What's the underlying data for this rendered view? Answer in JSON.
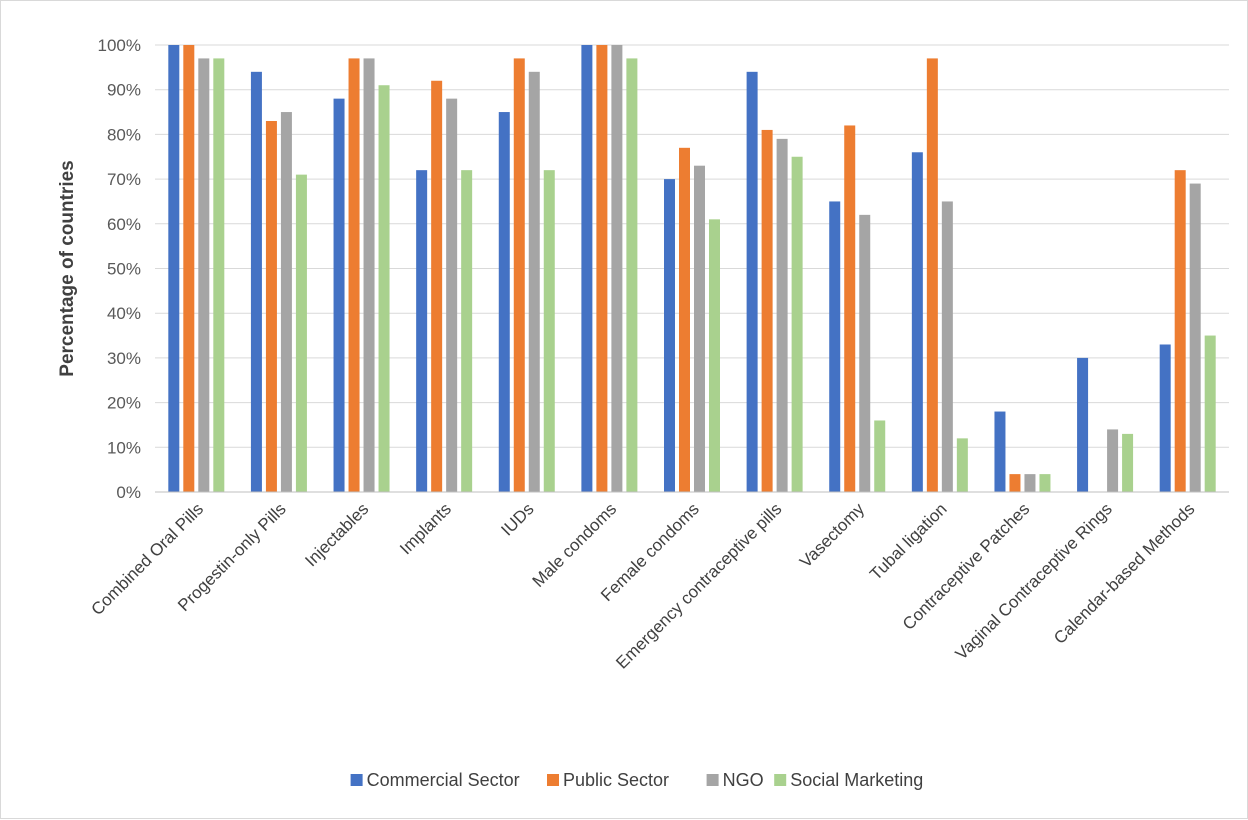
{
  "chart_data": {
    "type": "bar",
    "title": "",
    "xlabel": "",
    "ylabel": "Percentage of countries",
    "ylim": [
      0,
      100
    ],
    "yticks": [
      "0%",
      "10%",
      "20%",
      "30%",
      "40%",
      "50%",
      "60%",
      "70%",
      "80%",
      "90%",
      "100%"
    ],
    "grid": true,
    "legend_position": "bottom",
    "categories": [
      "Combined Oral Pills",
      "Progestin-only Pills",
      "Injectables",
      "Implants",
      "IUDs",
      "Male condoms",
      "Female condoms",
      "Emergency contraceptive pills",
      "Vasectomy",
      "Tubal ligation",
      "Contraceptive Patches",
      "Vaginal Contraceptive Rings",
      "Calendar-based Methods"
    ],
    "series": [
      {
        "name": "Commercial Sector",
        "color": "#4472c4",
        "values": [
          100,
          94,
          88,
          72,
          85,
          100,
          70,
          94,
          65,
          76,
          18,
          30,
          33
        ]
      },
      {
        "name": "Public Sector",
        "color": "#ed7d31",
        "values": [
          100,
          83,
          97,
          92,
          97,
          100,
          77,
          81,
          82,
          97,
          4,
          0,
          72
        ]
      },
      {
        "name": "NGO",
        "color": "#a5a5a5",
        "values": [
          97,
          85,
          97,
          88,
          94,
          100,
          73,
          79,
          62,
          65,
          4,
          14,
          69
        ]
      },
      {
        "name": "Social Marketing",
        "color": "#a9d18e",
        "values": [
          97,
          71,
          91,
          72,
          72,
          97,
          61,
          75,
          16,
          12,
          4,
          13,
          35
        ]
      }
    ]
  }
}
